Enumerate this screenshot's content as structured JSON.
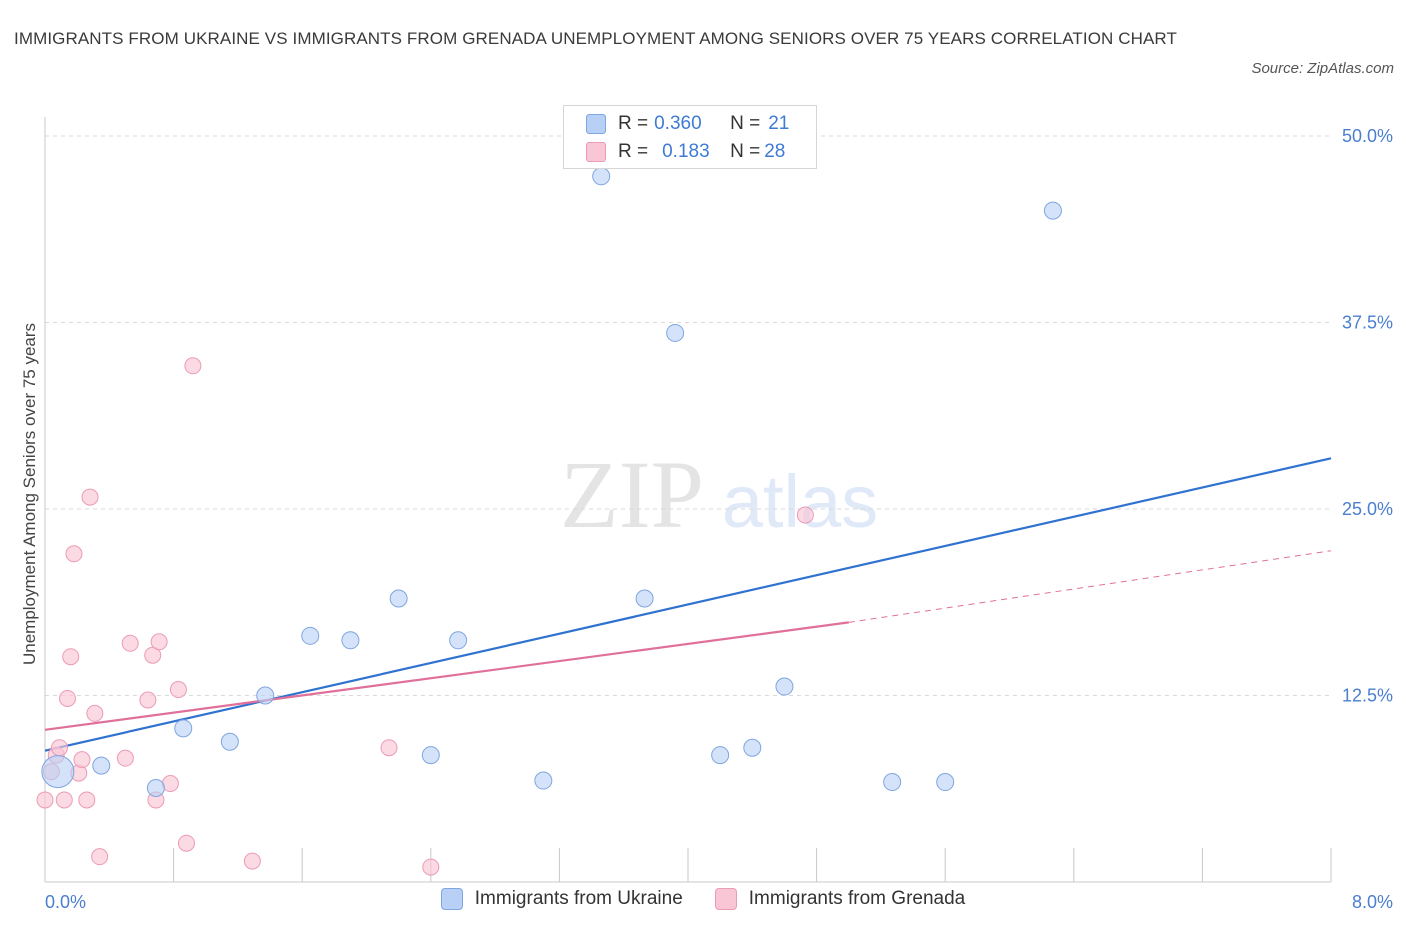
{
  "title": "IMMIGRANTS FROM UKRAINE VS IMMIGRANTS FROM GRENADA UNEMPLOYMENT AMONG SENIORS OVER 75 YEARS CORRELATION CHART",
  "source": "Source: ZipAtlas.com",
  "watermark": {
    "zip": "ZIP",
    "atlas": "atlas"
  },
  "legend": {
    "ukraine": {
      "r_label": "R = ",
      "r": "0.360",
      "n_label": "N = ",
      "n": "21"
    },
    "grenada": {
      "r_label": "R = ",
      "r": "0.183",
      "n_label": "N = ",
      "n": "28"
    }
  },
  "colors": {
    "ukraine_fill": "#b8d0f5",
    "ukraine_stroke": "#7ea6e0",
    "ukraine_line": "#2f72d0",
    "grenada_fill": "#f9c6d6",
    "grenada_stroke": "#ec9ab5",
    "grenada_line": "#e0709a",
    "tick_text": "#4a7fd0",
    "grid": "#d9d9d9"
  },
  "chart_data": {
    "type": "scatter",
    "title": "IMMIGRANTS FROM UKRAINE VS IMMIGRANTS FROM GRENADA UNEMPLOYMENT AMONG SENIORS OVER 75 YEARS CORRELATION CHART",
    "xlabel": "",
    "ylabel": "Unemployment Among Seniors over 75 years",
    "xlim": [
      0,
      8
    ],
    "ylim": [
      0,
      50
    ],
    "x_tick_labels": [
      {
        "value": 0,
        "label": "0.0%"
      },
      {
        "value": 8,
        "label": "8.0%"
      }
    ],
    "y_tick_labels": [
      {
        "value": 12.5,
        "label": "12.5%"
      },
      {
        "value": 25,
        "label": "25.0%"
      },
      {
        "value": 37.5,
        "label": "37.5%"
      },
      {
        "value": 50,
        "label": "50.0%"
      }
    ],
    "grid": true,
    "legend_position": "top-center",
    "series": [
      {
        "name": "Immigrants from Ukraine",
        "points": [
          {
            "x": 0.08,
            "y": 7.4,
            "big": true
          },
          {
            "x": 0.35,
            "y": 7.8
          },
          {
            "x": 0.69,
            "y": 6.3
          },
          {
            "x": 0.86,
            "y": 10.3
          },
          {
            "x": 1.15,
            "y": 9.4
          },
          {
            "x": 1.37,
            "y": 12.5
          },
          {
            "x": 1.65,
            "y": 16.5
          },
          {
            "x": 1.9,
            "y": 16.2
          },
          {
            "x": 2.2,
            "y": 19.0
          },
          {
            "x": 2.4,
            "y": 8.5
          },
          {
            "x": 2.57,
            "y": 16.2
          },
          {
            "x": 3.1,
            "y": 6.8
          },
          {
            "x": 3.46,
            "y": 47.3
          },
          {
            "x": 3.73,
            "y": 19.0
          },
          {
            "x": 3.92,
            "y": 36.8
          },
          {
            "x": 4.2,
            "y": 8.5
          },
          {
            "x": 4.4,
            "y": 9.0
          },
          {
            "x": 4.6,
            "y": 13.1
          },
          {
            "x": 5.27,
            "y": 6.7
          },
          {
            "x": 5.6,
            "y": 6.7
          },
          {
            "x": 6.27,
            "y": 45.0
          }
        ],
        "trend": {
          "x1": 0,
          "y1": 8.8,
          "x2": 8,
          "y2": 28.4
        }
      },
      {
        "name": "Immigrants from Grenada",
        "points": [
          {
            "x": 0.0,
            "y": 5.5
          },
          {
            "x": 0.04,
            "y": 7.4
          },
          {
            "x": 0.07,
            "y": 8.5
          },
          {
            "x": 0.09,
            "y": 9.0
          },
          {
            "x": 0.12,
            "y": 5.5
          },
          {
            "x": 0.14,
            "y": 12.3
          },
          {
            "x": 0.16,
            "y": 15.1
          },
          {
            "x": 0.18,
            "y": 22.0
          },
          {
            "x": 0.21,
            "y": 7.3
          },
          {
            "x": 0.23,
            "y": 8.2
          },
          {
            "x": 0.26,
            "y": 5.5
          },
          {
            "x": 0.28,
            "y": 25.8
          },
          {
            "x": 0.31,
            "y": 11.3
          },
          {
            "x": 0.34,
            "y": 1.7
          },
          {
            "x": 0.5,
            "y": 8.3
          },
          {
            "x": 0.53,
            "y": 16.0
          },
          {
            "x": 0.64,
            "y": 12.2
          },
          {
            "x": 0.67,
            "y": 15.2
          },
          {
            "x": 0.69,
            "y": 5.5
          },
          {
            "x": 0.71,
            "y": 16.1
          },
          {
            "x": 0.78,
            "y": 6.6
          },
          {
            "x": 0.83,
            "y": 12.9
          },
          {
            "x": 0.88,
            "y": 2.6
          },
          {
            "x": 0.92,
            "y": 34.6
          },
          {
            "x": 1.29,
            "y": 1.4
          },
          {
            "x": 2.14,
            "y": 9.0
          },
          {
            "x": 2.4,
            "y": 1.0
          },
          {
            "x": 4.73,
            "y": 24.6
          }
        ],
        "trend": {
          "x1": 0,
          "y1": 10.2,
          "x2": 5.0,
          "y2": 17.4
        },
        "trend_dashed": {
          "x1": 5.0,
          "y1": 17.4,
          "x2": 8,
          "y2": 22.2
        }
      }
    ]
  }
}
